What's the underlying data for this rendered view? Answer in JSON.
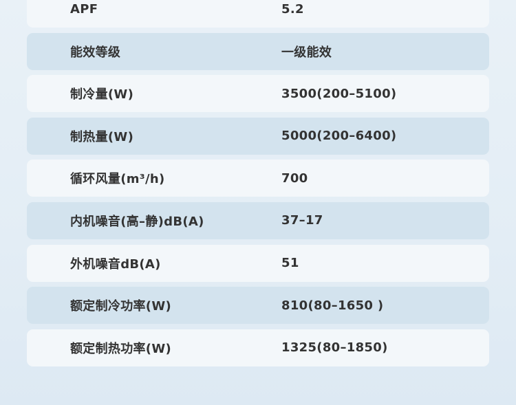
{
  "rows": [
    {
      "label": "APF",
      "value": "5.2"
    },
    {
      "label": "能效等级",
      "value": "一级能效"
    },
    {
      "label": "制冷量(W)",
      "value": "3500(200–5100)"
    },
    {
      "label": "制热量(W)",
      "value": "5000(200–6400)"
    },
    {
      "label": "循环风量(m³/h)",
      "value": "700"
    },
    {
      "label": "内机噪音(高–静)dB(A)",
      "value": "37–17"
    },
    {
      "label": "外机噪音dB(A)",
      "value": "51"
    },
    {
      "label": "额定制冷功率(W)",
      "value": "810(80–1650 )"
    },
    {
      "label": "额定制热功率(W)",
      "value": "1325(80–1850)"
    }
  ]
}
